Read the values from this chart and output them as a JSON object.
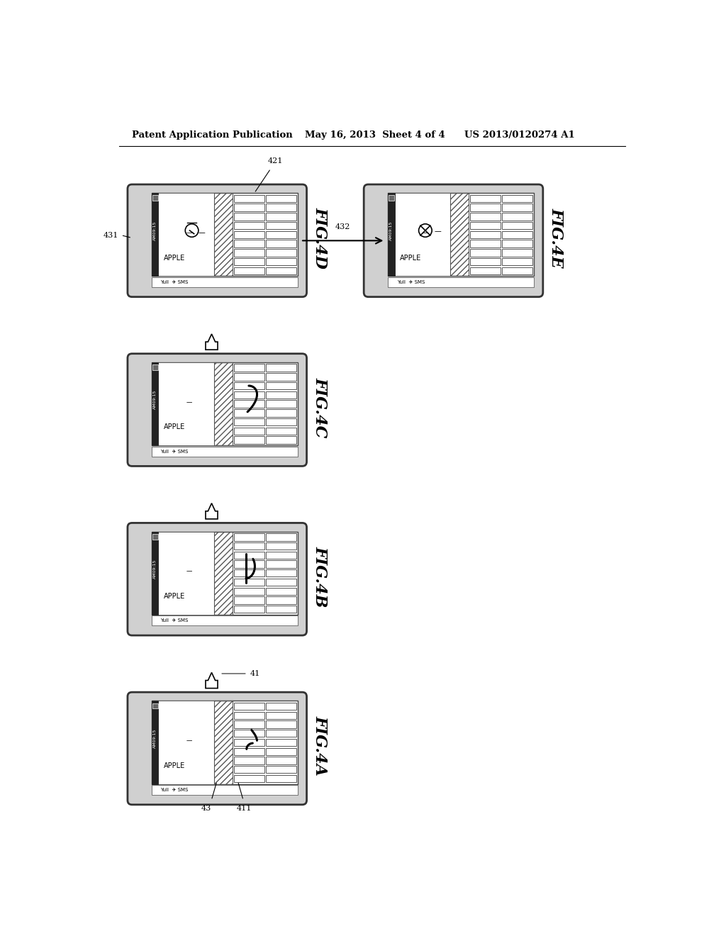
{
  "title_left": "Patent Application Publication",
  "title_center": "May 16, 2013  Sheet 4 of 4",
  "title_right": "US 2013/0120274 A1",
  "background_color": "#ffffff",
  "phone_border_color": "#000000",
  "phone_fill_color": "#e8e8e8",
  "screen_fill": "#ffffff",
  "status_bar_color": "#222222",
  "hatch_color": "#888888",
  "key_fill": "#ffffff",
  "key_border": "#555555"
}
